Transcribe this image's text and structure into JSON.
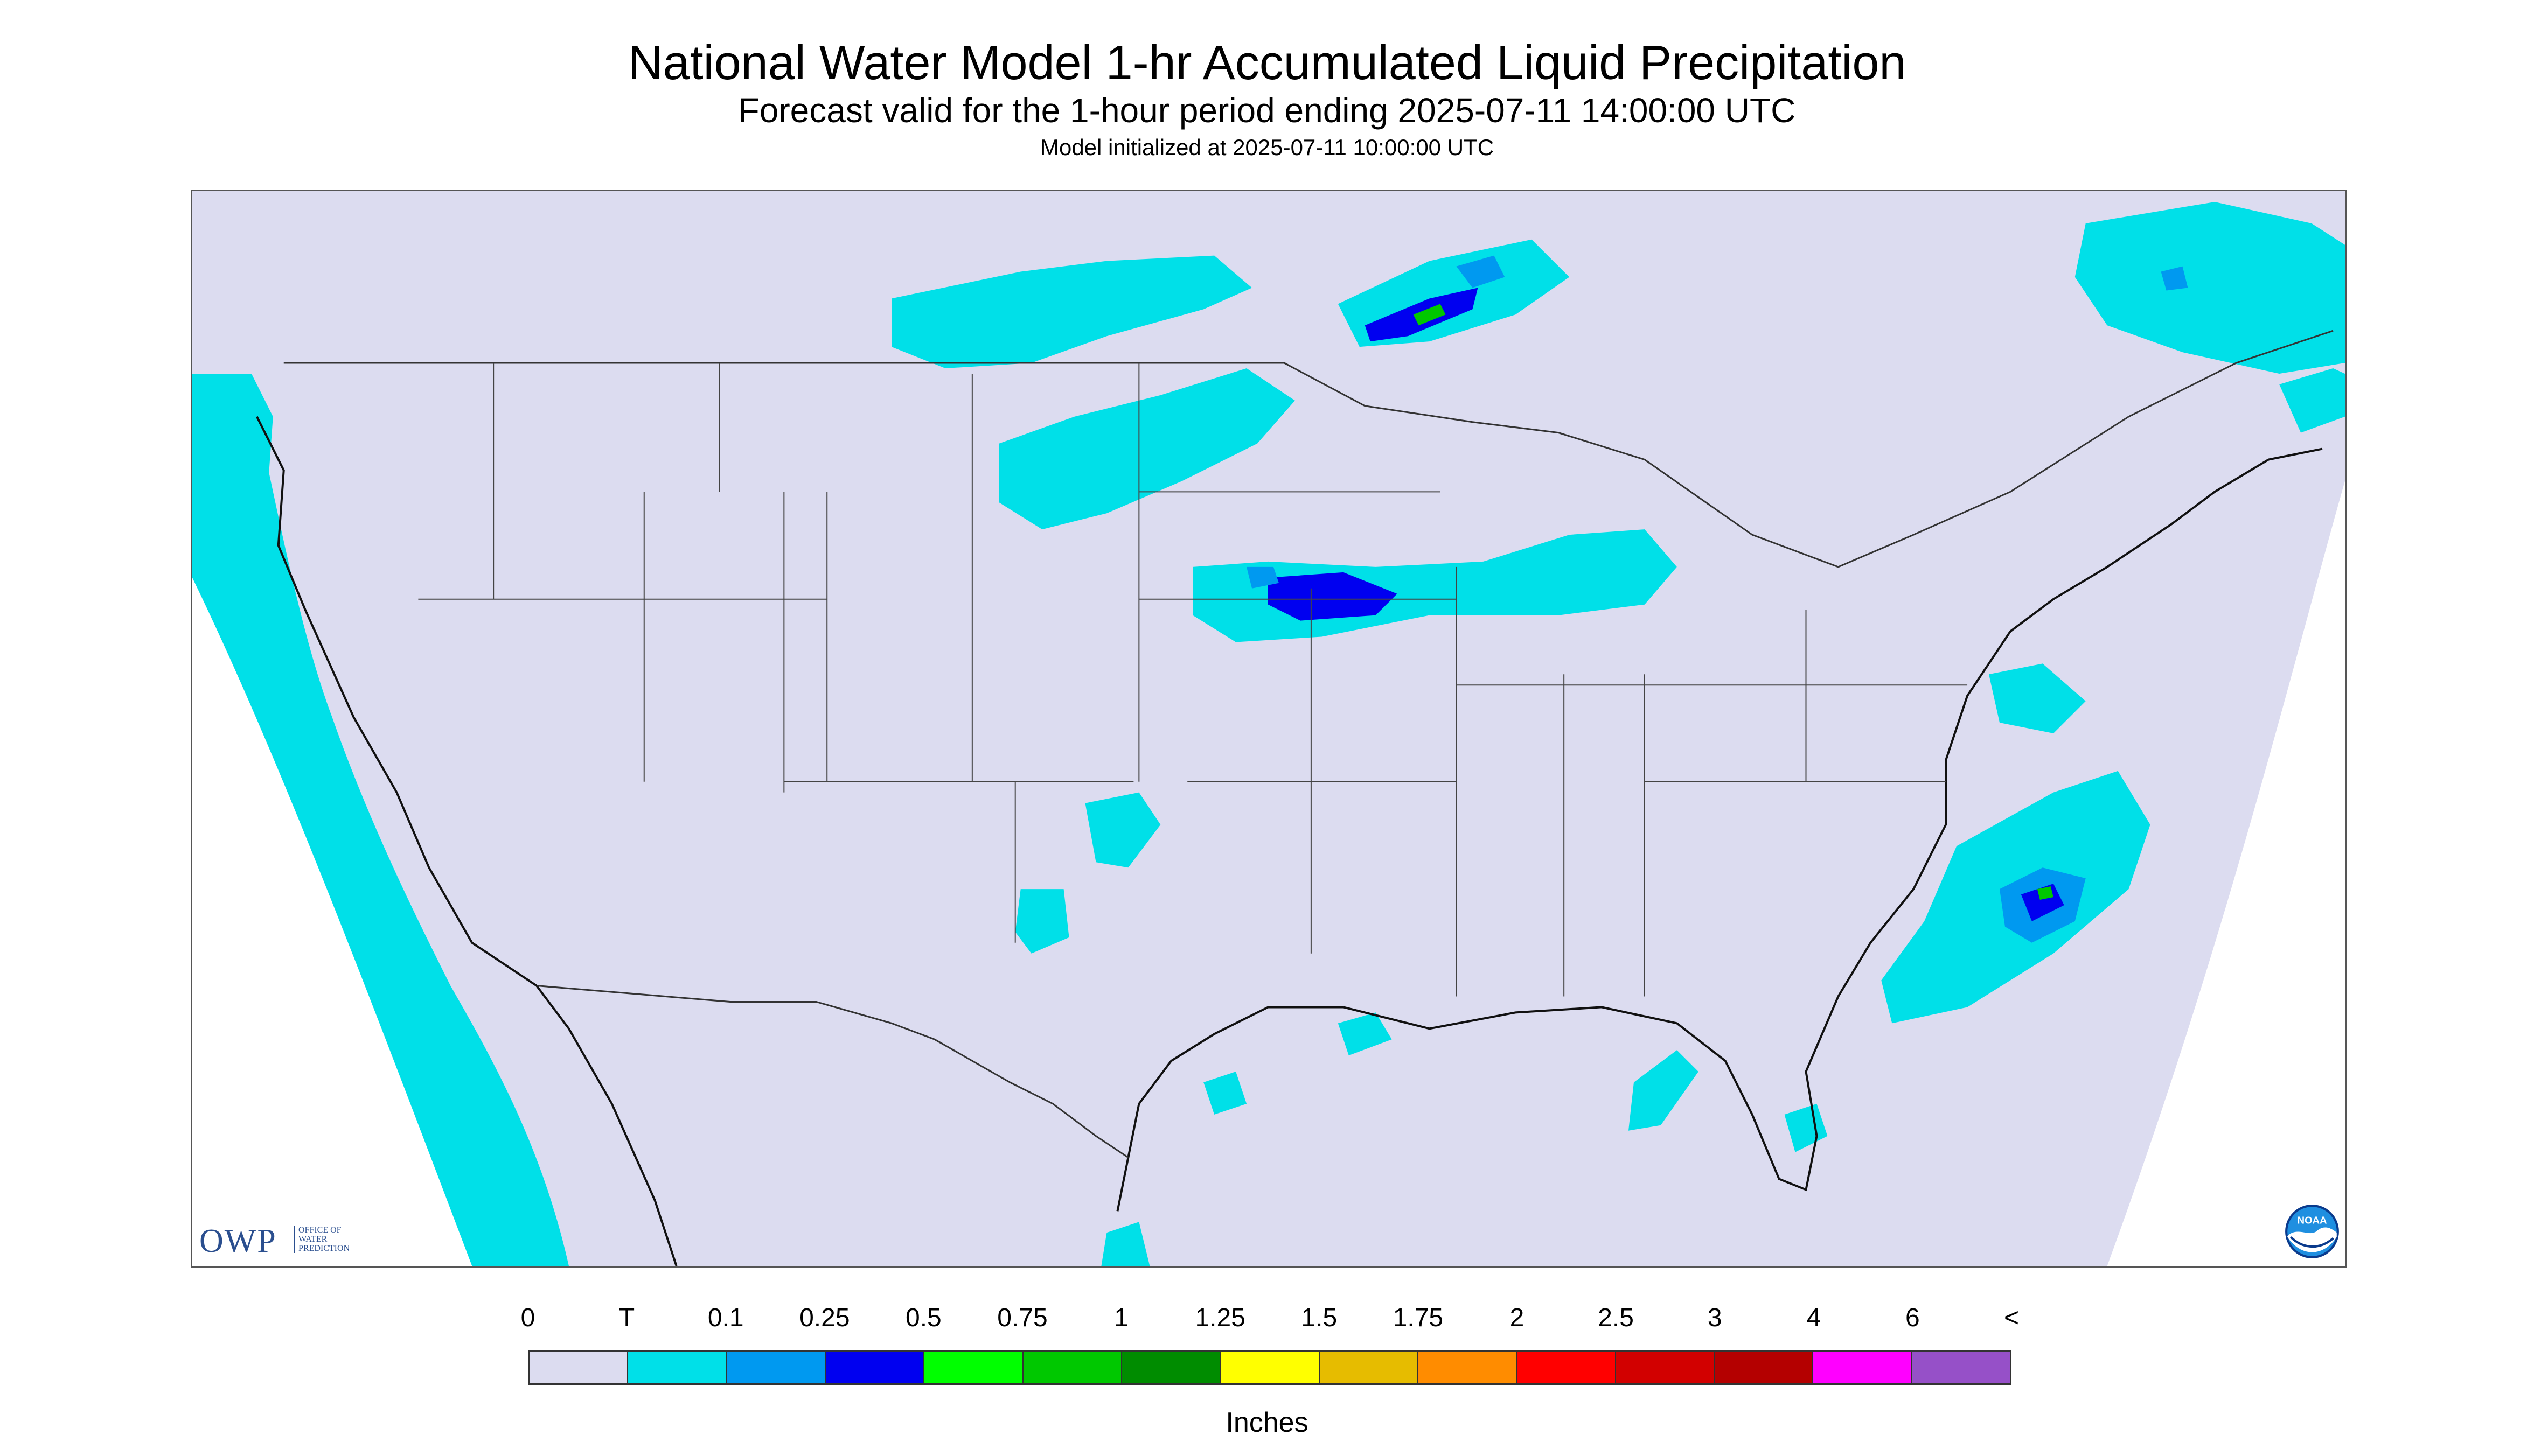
{
  "title": "National Water Model 1-hr Accumulated Liquid Precipitation",
  "subtitle": "Forecast valid for the 1-hour period ending 2025-07-11 14:00:00 UTC",
  "init_line": "Model initialized at 2025-07-11 10:00:00 UTC",
  "logos": {
    "owp_text": "OWP",
    "owp_subtext": "OFFICE OF WATER PREDICTION",
    "noaa": "NOAA"
  },
  "legend": {
    "labels": [
      "0",
      "T",
      "0.1",
      "0.25",
      "0.5",
      "0.75",
      "1",
      "1.25",
      "1.5",
      "1.75",
      "2",
      "2.5",
      "3",
      "4",
      "6",
      "<"
    ],
    "colors": [
      "#dcdcf0",
      "#00e0e8",
      "#0099f0",
      "#0000f0",
      "#00ff00",
      "#00c800",
      "#008c00",
      "#ffff00",
      "#e6bc00",
      "#ff8c00",
      "#ff0000",
      "#d20000",
      "#b40000",
      "#ff00ff",
      "#9650c8"
    ],
    "unit": "Inches"
  },
  "colors": {
    "background": "#dcdcf0",
    "trace": "#00e0e8",
    "light_blue": "#0099f0",
    "blue": "#0000f0",
    "green": "#00c800"
  }
}
